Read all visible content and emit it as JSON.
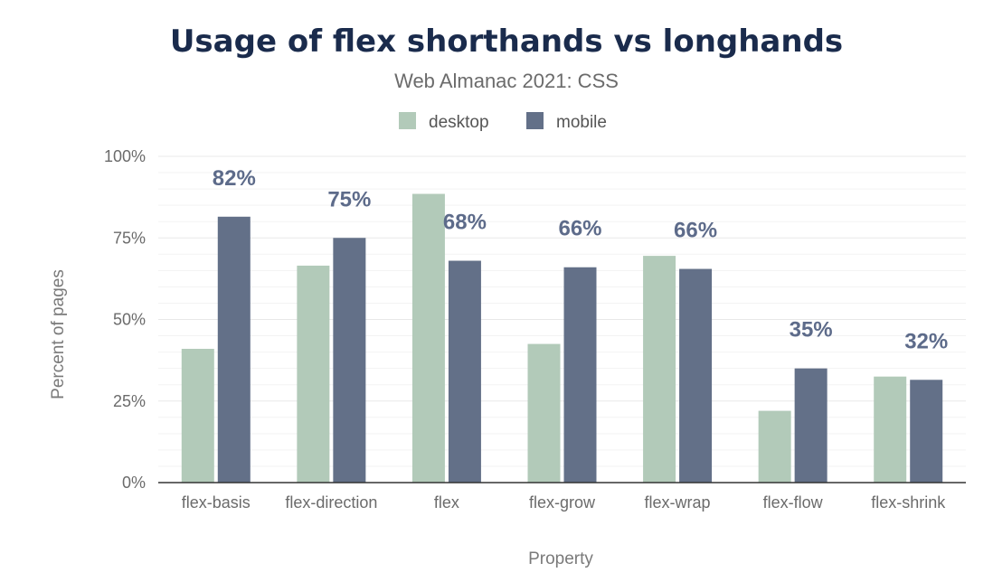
{
  "chart_data": {
    "type": "bar",
    "title": "Usage of flex shorthands vs longhands",
    "subtitle": "Web Almanac 2021: CSS",
    "xlabel": "Property",
    "ylabel": "Percent of pages",
    "categories": [
      "flex-basis",
      "flex-direction",
      "flex",
      "flex-grow",
      "flex-wrap",
      "flex-flow",
      "flex-shrink"
    ],
    "series": [
      {
        "name": "desktop",
        "color": "#b2cab9",
        "values": [
          41,
          66.5,
          88.5,
          42.5,
          69.5,
          22,
          32.5
        ]
      },
      {
        "name": "mobile",
        "color": "#637088",
        "values": [
          81.5,
          75,
          68,
          66,
          65.5,
          35,
          31.5
        ]
      }
    ],
    "data_labels": [
      "82%",
      "75%",
      "68%",
      "66%",
      "66%",
      "35%",
      "32%"
    ],
    "ylim": [
      0,
      100
    ],
    "yticks": [
      0,
      25,
      50,
      75,
      100
    ],
    "ytick_labels": [
      "0%",
      "25%",
      "50%",
      "75%",
      "100%"
    ],
    "legend_position": "top-center",
    "grid": true
  }
}
